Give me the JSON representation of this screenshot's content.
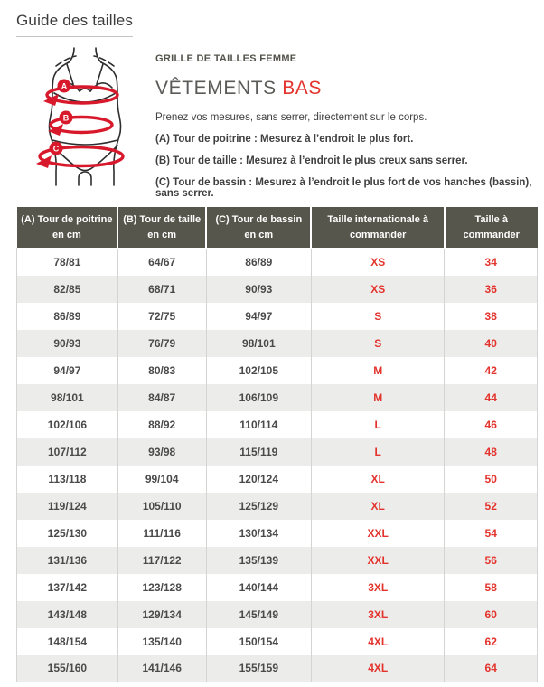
{
  "page": {
    "title": "Guide des tailles"
  },
  "guide": {
    "eyebrow": "GRILLE DE TAILLES FEMME",
    "heading": {
      "main": "VÊTEMENTS",
      "accent": "BAS"
    },
    "intro": "Prenez vos mesures, sans serrer, directement sur le corps.",
    "instructions": [
      "(A) Tour de poitrine : Mesurez à l’endroit le plus fort.",
      "(B) Tour de taille : Mesurez à l’endroit le plus creux sans serrer.",
      "(C) Tour de bassin : Mesurez à l’endroit le plus fort de vos hanches (bassin), sans serrer."
    ],
    "diagram": {
      "labels": [
        "A",
        "B",
        "C"
      ]
    }
  },
  "size_table": {
    "headers": [
      [
        "(A) Tour de poitrine",
        "en cm"
      ],
      [
        "(B) Tour de taille",
        "en cm"
      ],
      [
        "(C) Tour de bassin",
        "en cm"
      ],
      [
        "Taille internationale à",
        "commander"
      ],
      [
        "Taille à",
        "commander"
      ]
    ],
    "rows": [
      [
        "78/81",
        "64/67",
        "86/89",
        "XS",
        "34"
      ],
      [
        "82/85",
        "68/71",
        "90/93",
        "XS",
        "36"
      ],
      [
        "86/89",
        "72/75",
        "94/97",
        "S",
        "38"
      ],
      [
        "90/93",
        "76/79",
        "98/101",
        "S",
        "40"
      ],
      [
        "94/97",
        "80/83",
        "102/105",
        "M",
        "42"
      ],
      [
        "98/101",
        "84/87",
        "106/109",
        "M",
        "44"
      ],
      [
        "102/106",
        "88/92",
        "110/114",
        "L",
        "46"
      ],
      [
        "107/112",
        "93/98",
        "115/119",
        "L",
        "48"
      ],
      [
        "113/118",
        "99/104",
        "120/124",
        "XL",
        "50"
      ],
      [
        "119/124",
        "105/110",
        "125/129",
        "XL",
        "52"
      ],
      [
        "125/130",
        "111/116",
        "130/134",
        "XXL",
        "54"
      ],
      [
        "131/136",
        "117/122",
        "135/139",
        "XXL",
        "56"
      ],
      [
        "137/142",
        "123/128",
        "140/144",
        "3XL",
        "58"
      ],
      [
        "143/148",
        "129/134",
        "145/149",
        "3XL",
        "60"
      ],
      [
        "148/154",
        "135/140",
        "150/154",
        "4XL",
        "62"
      ],
      [
        "155/160",
        "141/146",
        "155/159",
        "4XL",
        "64"
      ]
    ]
  },
  "colors": {
    "accent_red": "#e3332c",
    "diagram_red": "#d8192c",
    "table_header_bg": "#57564c",
    "table_alt_row": "#ececeb",
    "text_dark": "#3f3f3f"
  }
}
